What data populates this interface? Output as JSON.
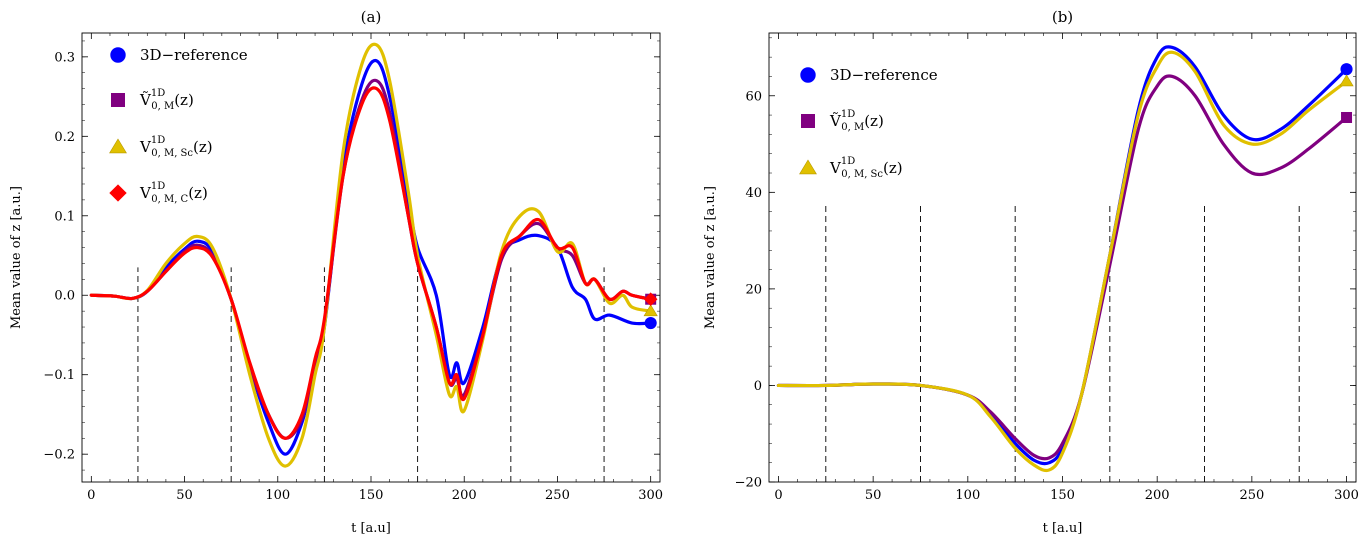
{
  "chart_data": [
    {
      "type": "line",
      "title": "(a)",
      "xlabel": "t  [a.u]",
      "ylabel": "Mean  value  of  z   [a.u.]",
      "xlim": [
        -5,
        305
      ],
      "ylim": [
        -0.235,
        0.33
      ],
      "xticks": [
        0,
        50,
        100,
        150,
        200,
        250,
        300
      ],
      "yticks": [
        -0.2,
        -0.1,
        0.0,
        0.1,
        0.2,
        0.3
      ],
      "ytick_labels": [
        "−0.2",
        "−0.1",
        "0.0",
        "0.1",
        "0.2",
        "0.3"
      ],
      "vlines": [
        25,
        75,
        125,
        175,
        225,
        275
      ],
      "vline_top": 0.035,
      "grid": false,
      "legend_position": "top-left",
      "series": [
        {
          "name": "3D−reference",
          "color": "#0000ff",
          "marker": "circle",
          "x": [
            0,
            12,
            22,
            30,
            40,
            50,
            57,
            65,
            75,
            85,
            95,
            104,
            113,
            120,
            125,
            135,
            145,
            153,
            160,
            170,
            175,
            185,
            192,
            196,
            200,
            210,
            220,
            230,
            240,
            250,
            258,
            265,
            270,
            278,
            290,
            300
          ],
          "y": [
            0,
            -0.001,
            -0.004,
            0.005,
            0.035,
            0.058,
            0.068,
            0.055,
            -0.005,
            -0.09,
            -0.16,
            -0.2,
            -0.16,
            -0.09,
            -0.04,
            0.16,
            0.265,
            0.295,
            0.25,
            0.12,
            0.06,
            0.0,
            -0.1,
            -0.085,
            -0.11,
            -0.04,
            0.05,
            0.07,
            0.075,
            0.06,
            0.01,
            -0.005,
            -0.03,
            -0.025,
            -0.035,
            -0.035
          ]
        },
        {
          "name": "Ṽ₀,M¹ᴰ(z)",
          "color": "#800080",
          "marker": "square",
          "x": [
            0,
            12,
            22,
            30,
            40,
            50,
            57,
            65,
            75,
            85,
            95,
            104,
            113,
            120,
            125,
            135,
            145,
            153,
            160,
            170,
            175,
            185,
            192,
            196,
            200,
            210,
            220,
            230,
            240,
            250,
            258,
            265,
            270,
            278,
            285,
            290,
            300
          ],
          "y": [
            0,
            -0.001,
            -0.004,
            0.005,
            0.03,
            0.055,
            0.063,
            0.05,
            -0.005,
            -0.09,
            -0.15,
            -0.18,
            -0.155,
            -0.085,
            -0.035,
            0.15,
            0.245,
            0.27,
            0.23,
            0.1,
            0.04,
            -0.04,
            -0.11,
            -0.105,
            -0.125,
            -0.05,
            0.045,
            0.075,
            0.09,
            0.06,
            0.05,
            0.015,
            0.02,
            -0.005,
            0.005,
            0.0,
            -0.005
          ]
        },
        {
          "name": "V₀,M,Sc¹ᴰ(z)",
          "color": "#e0c000",
          "marker": "triangle",
          "x": [
            0,
            12,
            22,
            30,
            40,
            50,
            57,
            65,
            75,
            85,
            95,
            104,
            113,
            120,
            125,
            135,
            145,
            153,
            160,
            170,
            175,
            185,
            192,
            196,
            200,
            210,
            220,
            230,
            240,
            250,
            258,
            265,
            270,
            278,
            285,
            290,
            300
          ],
          "y": [
            0,
            -0.001,
            -0.004,
            0.006,
            0.04,
            0.065,
            0.074,
            0.06,
            -0.005,
            -0.1,
            -0.18,
            -0.215,
            -0.18,
            -0.1,
            -0.04,
            0.18,
            0.29,
            0.315,
            0.27,
            0.13,
            0.05,
            -0.05,
            -0.125,
            -0.115,
            -0.145,
            -0.055,
            0.055,
            0.1,
            0.105,
            0.055,
            0.065,
            0.015,
            0.02,
            -0.01,
            0.0,
            -0.015,
            -0.02
          ]
        },
        {
          "name": "V₀,M,C¹ᴰ(z)",
          "color": "#ff0000",
          "marker": "diamond",
          "x": [
            0,
            12,
            22,
            30,
            40,
            50,
            57,
            65,
            75,
            85,
            95,
            104,
            113,
            120,
            125,
            135,
            145,
            153,
            160,
            170,
            175,
            185,
            192,
            196,
            200,
            210,
            220,
            230,
            240,
            250,
            258,
            265,
            270,
            278,
            285,
            290,
            300
          ],
          "y": [
            0,
            -0.001,
            -0.004,
            0.005,
            0.03,
            0.053,
            0.06,
            0.048,
            -0.005,
            -0.085,
            -0.15,
            -0.18,
            -0.15,
            -0.08,
            -0.03,
            0.15,
            0.24,
            0.26,
            0.22,
            0.1,
            0.04,
            -0.04,
            -0.11,
            -0.1,
            -0.13,
            -0.05,
            0.05,
            0.075,
            0.095,
            0.06,
            0.06,
            0.015,
            0.02,
            -0.005,
            0.005,
            0.0,
            -0.005
          ]
        }
      ]
    },
    {
      "type": "line",
      "title": "(b)",
      "xlabel": "t  [a.u]",
      "ylabel": "Mean  value  of  z   [a.u.]",
      "xlim": [
        -5,
        305
      ],
      "ylim": [
        -20,
        73
      ],
      "xticks": [
        0,
        50,
        100,
        150,
        200,
        250,
        300
      ],
      "yticks": [
        -20,
        0,
        20,
        40,
        60
      ],
      "ytick_labels": [
        "−20",
        "0",
        "20",
        "40",
        "60"
      ],
      "vlines": [
        25,
        75,
        125,
        175,
        225,
        275
      ],
      "vline_top": 38,
      "grid": false,
      "legend_position": "top-left",
      "series": [
        {
          "name": "3D−reference",
          "color": "#0000ff",
          "marker": "circle",
          "x": [
            0,
            25,
            50,
            75,
            100,
            112,
            125,
            135,
            143,
            150,
            160,
            175,
            190,
            200,
            208,
            220,
            235,
            250,
            265,
            280,
            300
          ],
          "y": [
            0,
            0,
            0.3,
            0,
            -2,
            -6,
            -12,
            -15.5,
            -16,
            -13,
            -2,
            27,
            57,
            68,
            70,
            66,
            56,
            51,
            53,
            58,
            65.5
          ]
        },
        {
          "name": "Ṽ₀,M¹ᴰ(z)",
          "color": "#800080",
          "marker": "square",
          "x": [
            0,
            25,
            50,
            75,
            100,
            112,
            125,
            135,
            143,
            150,
            160,
            175,
            190,
            200,
            208,
            220,
            235,
            250,
            265,
            280,
            300
          ],
          "y": [
            0,
            0,
            0.3,
            0,
            -2,
            -5.5,
            -11,
            -14.5,
            -15,
            -12,
            -2,
            25,
            53,
            62,
            64,
            60,
            50,
            44,
            45,
            49,
            55.5
          ]
        },
        {
          "name": "V₀,M,Sc¹ᴰ(z)",
          "color": "#e0c000",
          "marker": "triangle",
          "x": [
            0,
            25,
            50,
            75,
            100,
            112,
            125,
            135,
            143,
            150,
            160,
            175,
            190,
            200,
            208,
            220,
            235,
            250,
            265,
            280,
            300
          ],
          "y": [
            0,
            0,
            0.3,
            0,
            -2,
            -6.5,
            -13,
            -16.5,
            -17.5,
            -14,
            -2,
            27,
            56,
            66,
            69,
            65,
            54,
            50,
            52,
            57,
            63
          ]
        }
      ]
    }
  ]
}
